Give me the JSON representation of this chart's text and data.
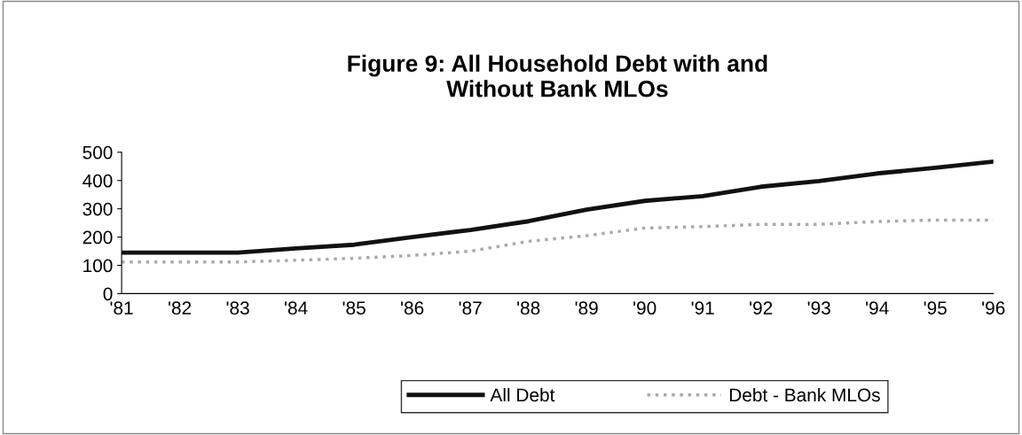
{
  "chart_data": {
    "type": "line",
    "title": "Figure 9: All Household Debt with and\nWithout Bank MLOs",
    "categories": [
      "'81",
      "'82",
      "'83",
      "'84",
      "'85",
      "'86",
      "'87",
      "'88",
      "'89",
      "'90",
      "'91",
      "'92",
      "'93",
      "'94",
      "'95",
      "'96"
    ],
    "series": [
      {
        "name": "All Debt",
        "color": "#111111",
        "line_style": "solid",
        "values": [
          145,
          145,
          145,
          160,
          173,
          200,
          225,
          256,
          297,
          328,
          345,
          378,
          398,
          425,
          445,
          467
        ]
      },
      {
        "name": "Debt - Bank MLOs",
        "color": "#aaaaaa",
        "line_style": "dotted",
        "values": [
          112,
          112,
          112,
          118,
          125,
          135,
          150,
          185,
          205,
          232,
          237,
          245,
          245,
          255,
          260,
          260
        ]
      }
    ],
    "ylim": [
      0,
      500
    ],
    "yticks": [
      0,
      100,
      200,
      300,
      400,
      500
    ],
    "grid": false,
    "legend": "bottom",
    "marker": "none"
  }
}
